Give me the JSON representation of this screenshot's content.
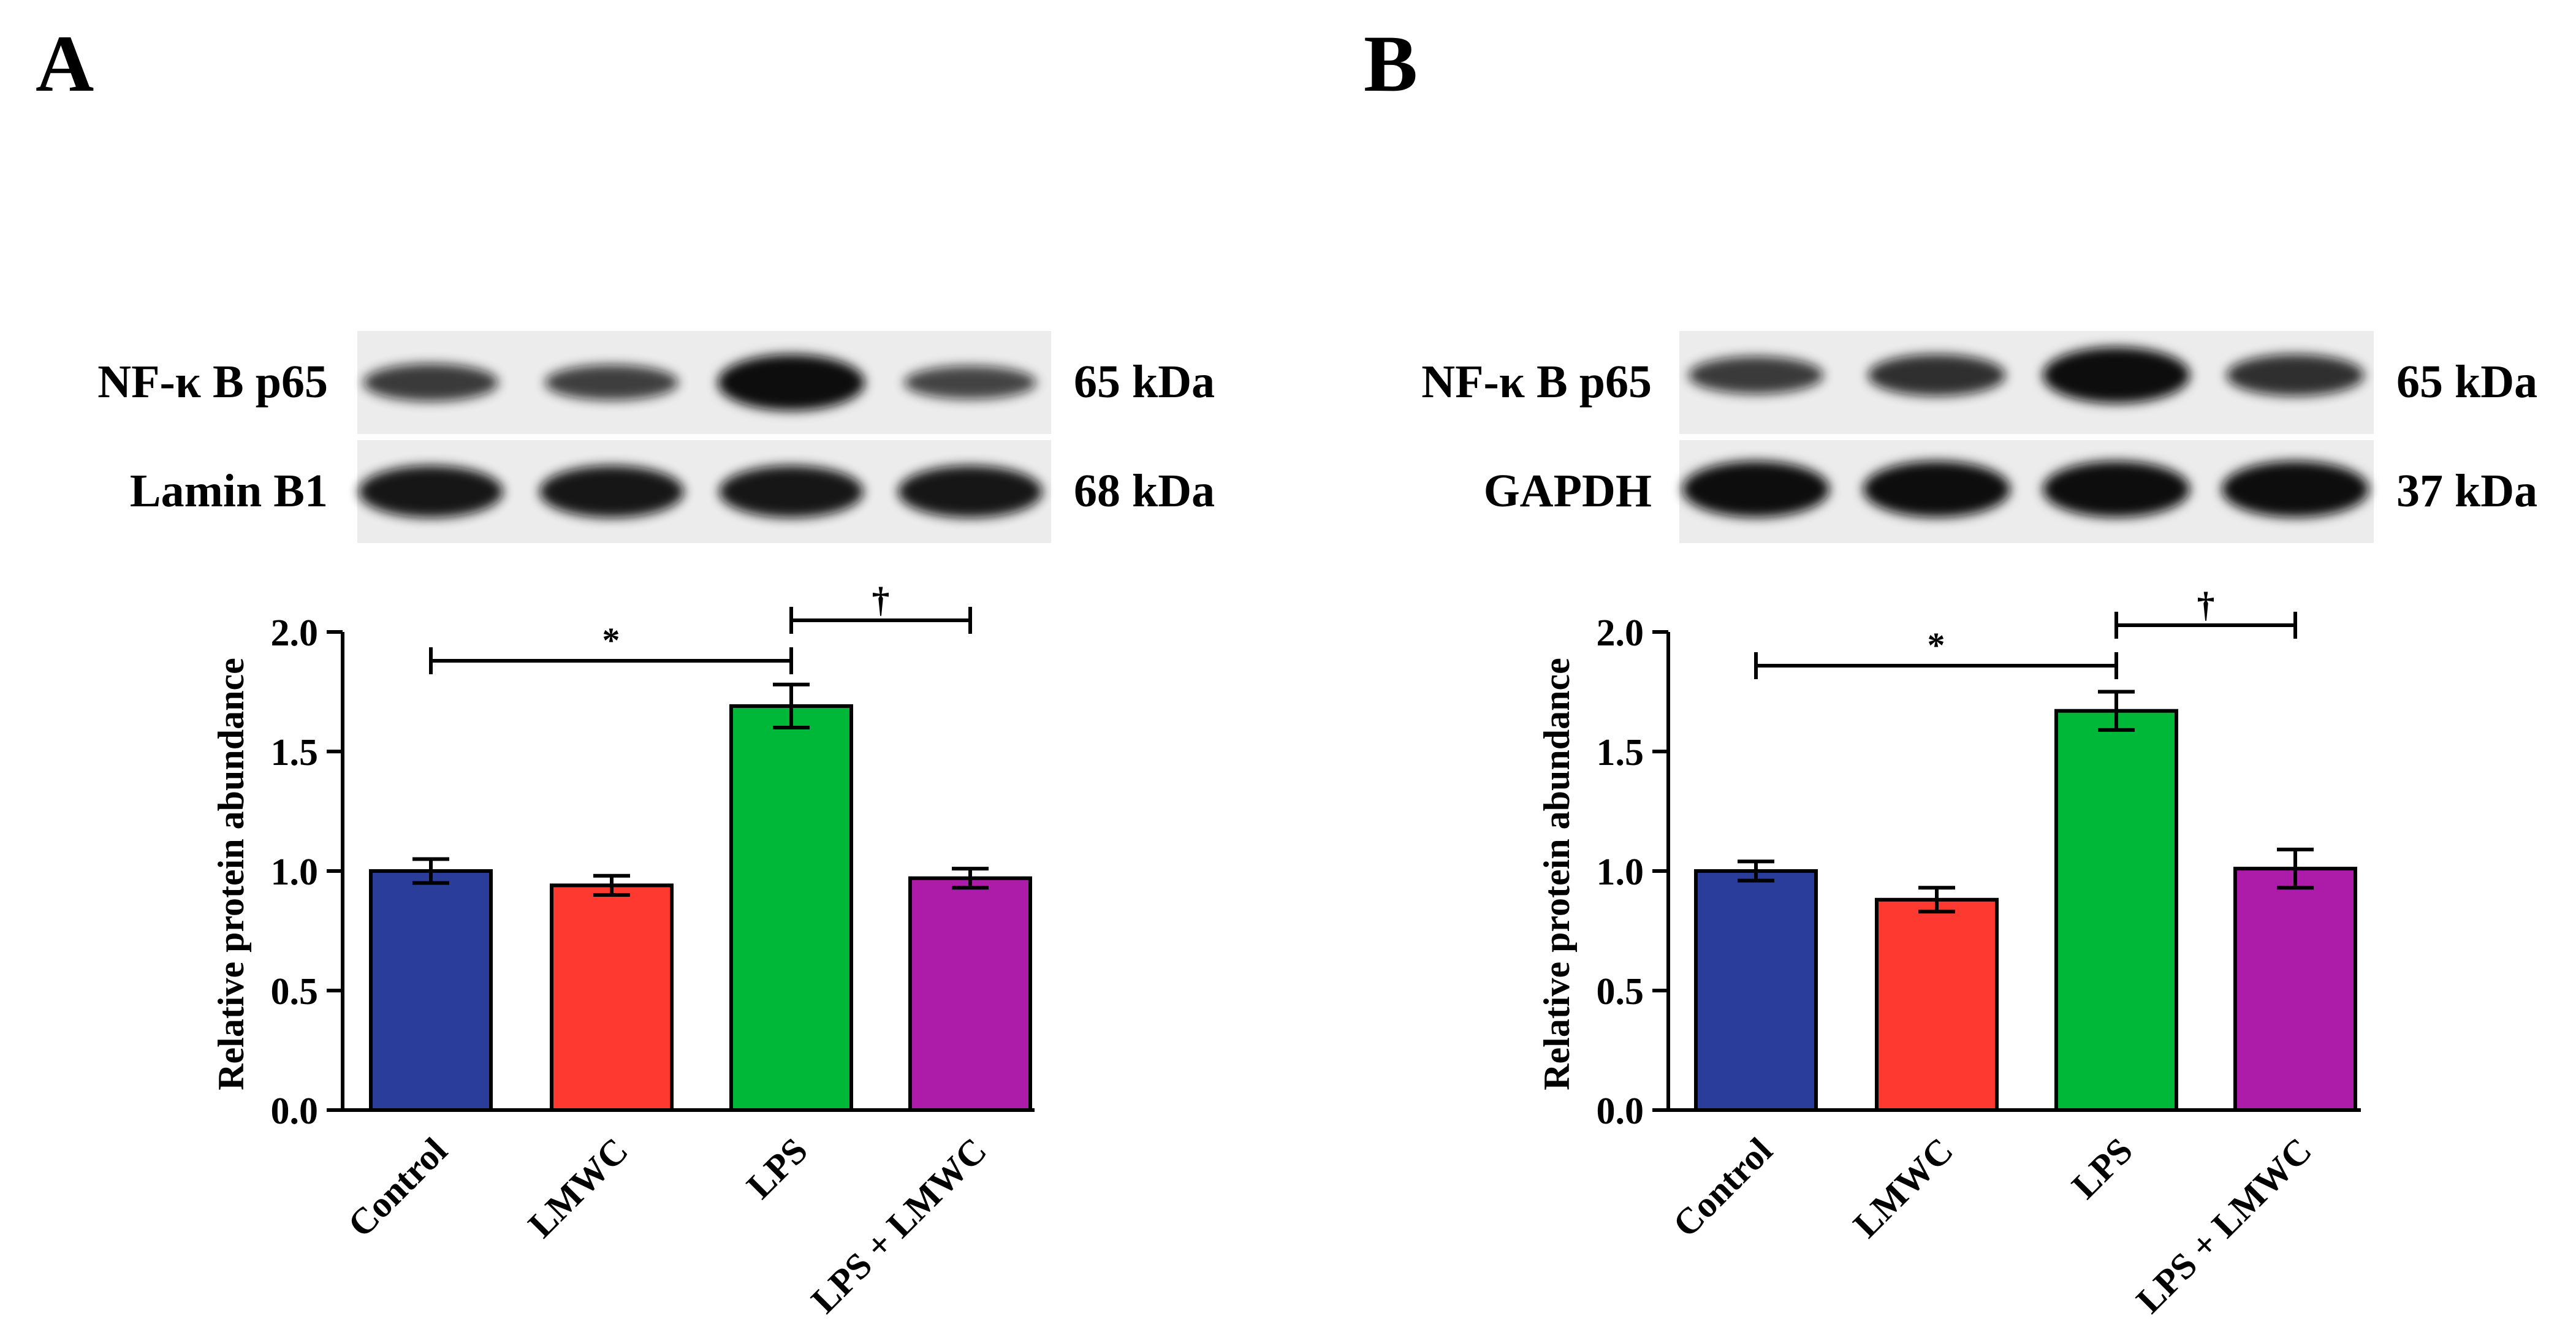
{
  "colors": {
    "control": "#2a3d9a",
    "lmwc": "#fe3a30",
    "lps": "#00b837",
    "lps_lmwc": "#ad1ba9",
    "axis": "#000000",
    "blot_background": "#ececec",
    "blot_band": "#111111"
  },
  "panels": [
    {
      "letter": "A",
      "blot": {
        "rows": [
          {
            "protein": "NF-κ B p65",
            "size": "65 kDa",
            "band_intensity": [
              0.55,
              0.5,
              1.0,
              0.45
            ]
          },
          {
            "protein": "Lamin B1",
            "size": "68 kDa",
            "band_intensity": [
              0.9,
              0.9,
              0.9,
              0.9
            ]
          }
        ]
      }
    },
    {
      "letter": "B",
      "blot": {
        "rows": [
          {
            "protein": "NF-κ B p65",
            "size": "65 kDa",
            "band_intensity": [
              0.55,
              0.65,
              1.0,
              0.65
            ]
          },
          {
            "protein": "GAPDH",
            "size": "37 kDa",
            "band_intensity": [
              1.0,
              1.0,
              1.0,
              1.0
            ]
          }
        ]
      }
    }
  ],
  "chart_data": [
    {
      "type": "bar",
      "categories": [
        "Control",
        "LMWC",
        "LPS",
        "LPS + LMWC"
      ],
      "values": [
        1.0,
        0.94,
        1.69,
        0.97
      ],
      "errors": [
        0.05,
        0.04,
        0.09,
        0.04
      ],
      "ylabel": "Relative protein abundance",
      "xlabel": "",
      "ylim": [
        0,
        2.0
      ],
      "yticks": [
        "0.0",
        "0.5",
        "1.0",
        "1.5",
        "2.0"
      ],
      "significance": [
        {
          "from": "Control",
          "to": "LPS",
          "symbol": "*"
        },
        {
          "from": "LPS",
          "to": "LPS + LMWC",
          "symbol": "†"
        }
      ]
    },
    {
      "type": "bar",
      "categories": [
        "Control",
        "LMWC",
        "LPS",
        "LPS + LMWC"
      ],
      "values": [
        1.0,
        0.88,
        1.67,
        1.01
      ],
      "errors": [
        0.04,
        0.05,
        0.08,
        0.08
      ],
      "ylabel": "Relative protein abundance",
      "xlabel": "",
      "ylim": [
        0,
        2.0
      ],
      "yticks": [
        "0.0",
        "0.5",
        "1.0",
        "1.5",
        "2.0"
      ],
      "significance": [
        {
          "from": "Control",
          "to": "LPS",
          "symbol": "*"
        },
        {
          "from": "LPS",
          "to": "LPS + LMWC",
          "symbol": "†"
        }
      ]
    }
  ]
}
